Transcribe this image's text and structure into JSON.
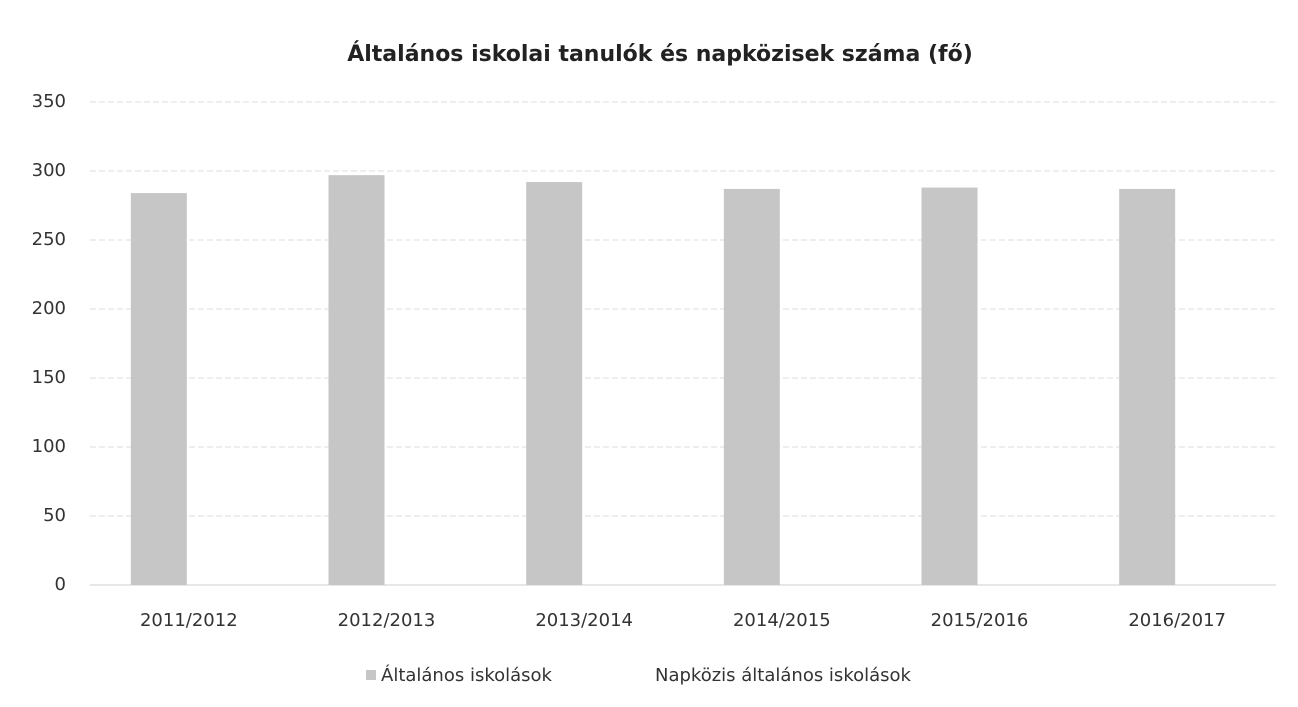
{
  "chart_data": {
    "type": "bar",
    "title": "Általános iskolai tanulók és napközisek száma (fő)",
    "categories": [
      "2011/2012",
      "2012/2013",
      "2013/2014",
      "2014/2015",
      "2015/2016",
      "2016/2017"
    ],
    "series": [
      {
        "name": "Általános iskolások",
        "color": "#c6c6c6",
        "values": [
          284,
          297,
          292,
          287,
          288,
          287
        ]
      },
      {
        "name": "Napközis általános iskolások",
        "color": "#ffffff",
        "values": [
          null,
          null,
          null,
          null,
          null,
          null
        ]
      }
    ],
    "ylim": [
      0,
      350
    ],
    "yticks": [
      0,
      50,
      100,
      150,
      200,
      250,
      300,
      350
    ],
    "grid": true,
    "legend": "bottom"
  }
}
